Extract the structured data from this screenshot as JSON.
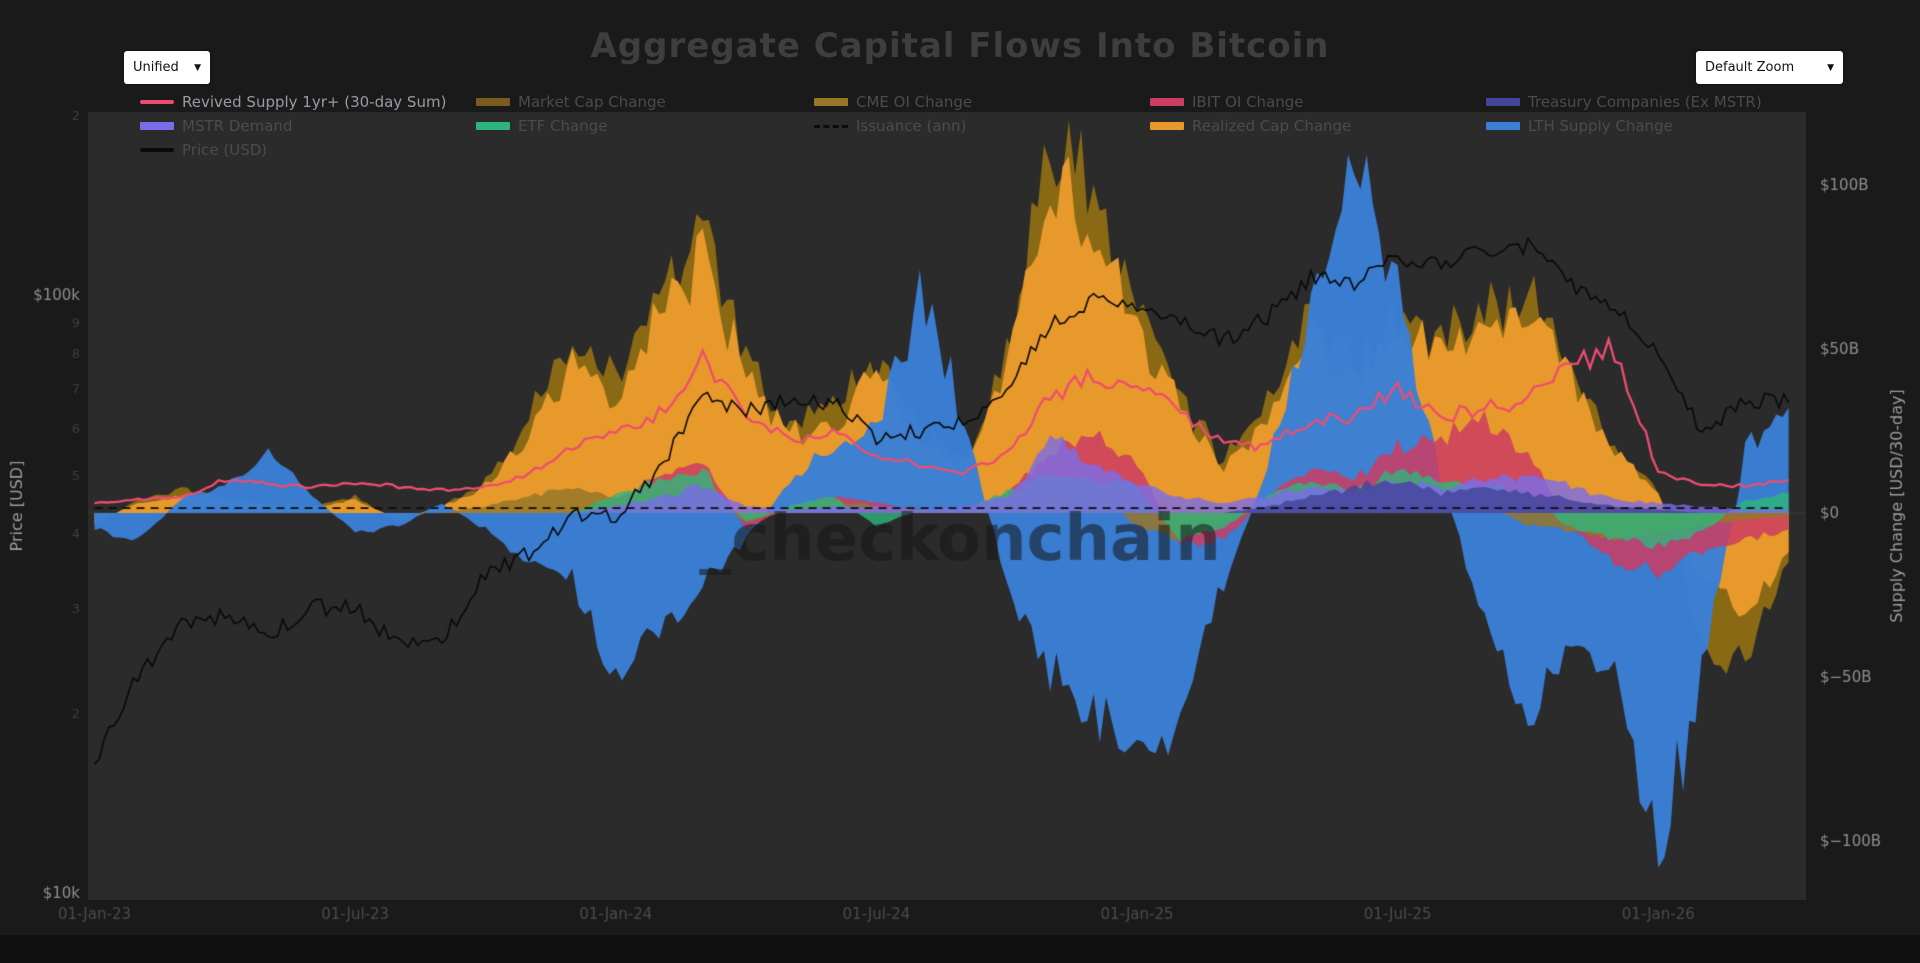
{
  "title": "Aggregate Capital Flows Into Bitcoin",
  "watermark": "_checkonchain",
  "controls": {
    "unified_label": "Unified",
    "zoom_label": "Default Zoom",
    "dropdown_arrow": "▼"
  },
  "colors": {
    "background": "#1a1a1a",
    "plot_background": "#2b2b2b",
    "title_text": "#3e3e3e",
    "tick_major": "#8f8f8f",
    "tick_minor": "#3f3f3f",
    "x_tick": "#4c4c4c",
    "axis_title": "#9c9c9c",
    "zero_line": "#3a3a3a",
    "watermark_text": "rgba(22,22,22,0.55)"
  },
  "legend": {
    "rows": [
      [
        {
          "label": "Revived Supply 1yr+ (30-day Sum)",
          "color": "#ee4d72",
          "swatch": "line",
          "bright": true
        },
        {
          "label": "Market Cap Change",
          "color": "#7a5c1e",
          "swatch": "area",
          "bright": false
        },
        {
          "label": "CME OI Change",
          "color": "#96772a",
          "swatch": "area",
          "bright": false
        },
        {
          "label": "IBIT OI Change",
          "color": "#cc3c63",
          "swatch": "area",
          "bright": false
        },
        {
          "label": "Treasury Companies (Ex MSTR)",
          "color": "#44449a",
          "swatch": "area",
          "bright": false
        }
      ],
      [
        {
          "label": "MSTR Demand",
          "color": "#7b6cea",
          "swatch": "area",
          "bright": false
        },
        {
          "label": "ETF Change",
          "color": "#2eb57c",
          "swatch": "area",
          "bright": false
        },
        {
          "label": "Issuance (ann)",
          "color": "#0c0c0c",
          "swatch": "dash",
          "bright": false
        },
        {
          "label": "Realized Cap Change",
          "color": "#e8992b",
          "swatch": "area",
          "bright": false
        },
        {
          "label": "LTH Supply Change",
          "color": "#3a7fd6",
          "swatch": "area",
          "bright": false
        }
      ],
      [
        {
          "label": "Price (USD)",
          "color": "#0a0a0a",
          "swatch": "line",
          "bright": false
        }
      ]
    ]
  },
  "chart_data": {
    "type": "mixed-area-line",
    "title": "Aggregate Capital Flows Into Bitcoin",
    "x": [
      "2023-01",
      "2023-02",
      "2023-03",
      "2023-04",
      "2023-05",
      "2023-06",
      "2023-07",
      "2023-08",
      "2023-09",
      "2023-10",
      "2023-11",
      "2023-12",
      "2024-01",
      "2024-02",
      "2024-03",
      "2024-04",
      "2024-05",
      "2024-06",
      "2024-07",
      "2024-08",
      "2024-09",
      "2024-10",
      "2024-11",
      "2024-12",
      "2025-01",
      "2025-02",
      "2025-03",
      "2025-04",
      "2025-05",
      "2025-06",
      "2025-07",
      "2025-08",
      "2025-09",
      "2025-10",
      "2025-11",
      "2025-12",
      "2026-01",
      "2026-02",
      "2026-03",
      "2026-04"
    ],
    "x_ticks": [
      {
        "label": "01-Jan-23",
        "month_index": 0
      },
      {
        "label": "01-Jul-23",
        "month_index": 6
      },
      {
        "label": "01-Jan-24",
        "month_index": 12
      },
      {
        "label": "01-Jul-24",
        "month_index": 18
      },
      {
        "label": "01-Jan-25",
        "month_index": 24
      },
      {
        "label": "01-Jul-25",
        "month_index": 30
      },
      {
        "label": "01-Jan-26",
        "month_index": 36
      }
    ],
    "axes": {
      "left": {
        "title": "Price [USD]",
        "scale": "log",
        "range": [
          9700,
          202000
        ],
        "ticks": [
          {
            "label": "2",
            "value": 200000,
            "major": false
          },
          {
            "label": "$100k",
            "value": 100000,
            "major": true
          },
          {
            "label": "9",
            "value": 90000,
            "major": false
          },
          {
            "label": "8",
            "value": 80000,
            "major": false
          },
          {
            "label": "7",
            "value": 70000,
            "major": false
          },
          {
            "label": "6",
            "value": 60000,
            "major": false
          },
          {
            "label": "5",
            "value": 50000,
            "major": false
          },
          {
            "label": "4",
            "value": 40000,
            "major": false
          },
          {
            "label": "3",
            "value": 30000,
            "major": false
          },
          {
            "label": "2",
            "value": 20000,
            "major": false
          },
          {
            "label": "$10k",
            "value": 10000,
            "major": true
          }
        ]
      },
      "right": {
        "title": "Supply Change [USD/30-day]",
        "scale": "linear",
        "unit": "billion USD",
        "range": [
          -118,
          122
        ],
        "ticks": [
          {
            "label": "$100B",
            "value": 100
          },
          {
            "label": "$50B",
            "value": 50
          },
          {
            "label": "$0",
            "value": 0
          },
          {
            "label": "$−50B",
            "value": -50
          },
          {
            "label": "$−100B",
            "value": -100
          }
        ]
      }
    },
    "series": [
      {
        "name": "Market Cap Change",
        "axis": "right",
        "kind": "area",
        "color": "#8a6914",
        "alpha": 1.0,
        "values": [
          -4,
          4,
          7,
          5,
          3,
          2,
          5,
          -3,
          2,
          9,
          28,
          52,
          40,
          68,
          88,
          46,
          26,
          32,
          48,
          24,
          16,
          50,
          115,
          100,
          68,
          34,
          16,
          32,
          64,
          45,
          62,
          55,
          60,
          70,
          45,
          20,
          6,
          -38,
          -48,
          -15
        ]
      },
      {
        "name": "Realized Cap Change",
        "axis": "right",
        "kind": "area",
        "color": "#e8992b",
        "alpha": 1.0,
        "values": [
          -3,
          3,
          5,
          4,
          2,
          2,
          4,
          -2,
          2,
          8,
          24,
          45,
          35,
          60,
          78,
          42,
          24,
          28,
          42,
          20,
          14,
          45,
          102,
          88,
          60,
          30,
          14,
          28,
          58,
          40,
          55,
          50,
          55,
          63,
          40,
          18,
          5,
          -22,
          -31,
          -12
        ]
      },
      {
        "name": "LTH Supply Change",
        "axis": "right",
        "kind": "area",
        "color": "#3a7fd6",
        "alpha": 0.97,
        "values": [
          -5,
          -8,
          4,
          8,
          18,
          5,
          -6,
          -4,
          3,
          -5,
          -14,
          -20,
          -51,
          -35,
          -22,
          -8,
          10,
          20,
          25,
          66,
          30,
          -20,
          -50,
          -60,
          -75,
          -58,
          -22,
          15,
          60,
          109,
          70,
          8,
          -30,
          -68,
          -40,
          -45,
          -103,
          -50,
          20,
          32
        ]
      },
      {
        "name": "IBIT OI Change",
        "axis": "right",
        "kind": "area",
        "color": "#cc3c63",
        "alpha": 0.85,
        "values": [
          0,
          0,
          0,
          0,
          0,
          0,
          0,
          0,
          0,
          0,
          0,
          0,
          5,
          10,
          16,
          -5,
          2,
          5,
          3,
          1,
          1,
          5,
          18,
          24,
          14,
          -10,
          -8,
          5,
          14,
          10,
          20,
          24,
          28,
          20,
          -5,
          -15,
          -18,
          -12,
          -8,
          -5
        ]
      },
      {
        "name": "CME OI Change",
        "axis": "right",
        "kind": "area",
        "color": "#96772a",
        "alpha": 0.85,
        "values": [
          0,
          0,
          0,
          0,
          0,
          0,
          0,
          0,
          0,
          2,
          5,
          8,
          4,
          6,
          7,
          -3,
          1,
          4,
          2,
          1,
          1,
          3,
          10,
          8,
          -4,
          -8,
          -3,
          2,
          5,
          3,
          6,
          4,
          3,
          -4,
          -5,
          -8,
          -6,
          -4,
          -2,
          -1
        ]
      },
      {
        "name": "ETF Change",
        "axis": "right",
        "kind": "area",
        "color": "#2eb57c",
        "alpha": 0.8,
        "values": [
          0,
          0,
          0,
          0,
          0,
          0,
          0,
          0,
          0,
          0,
          0,
          0,
          6,
          10,
          13,
          -3,
          2,
          5,
          -4,
          1,
          1,
          6,
          12,
          10,
          8,
          -8,
          -5,
          6,
          10,
          6,
          13,
          10,
          8,
          6,
          -5,
          -8,
          -10,
          -6,
          4,
          6
        ]
      },
      {
        "name": "MSTR Demand",
        "axis": "right",
        "kind": "area",
        "color": "#7b6cea",
        "alpha": 0.8,
        "values": [
          0,
          0,
          0,
          0,
          0,
          0,
          0,
          0,
          0,
          0,
          0,
          0,
          2,
          5,
          8,
          2,
          1,
          2,
          2,
          1,
          2,
          5,
          22,
          15,
          10,
          5,
          3,
          5,
          8,
          6,
          10,
          8,
          10,
          12,
          8,
          4,
          3,
          2,
          1,
          1
        ]
      },
      {
        "name": "Treasury Companies (Ex MSTR)",
        "axis": "right",
        "kind": "area",
        "color": "#44449a",
        "alpha": 0.8,
        "values": [
          0,
          0,
          0,
          0,
          0,
          0,
          0,
          0,
          0,
          0,
          0,
          0,
          0,
          0,
          0,
          0,
          0,
          0,
          0,
          0,
          0,
          0,
          0,
          0,
          0,
          0,
          0,
          2,
          5,
          8,
          10,
          6,
          8,
          6,
          4,
          2,
          1,
          0,
          0,
          0
        ]
      },
      {
        "name": "Issuance (ann)",
        "axis": "right",
        "kind": "dashed-line",
        "color": "#0c0c0c",
        "alpha": 1.0,
        "values": [
          1.5,
          1.5,
          1.5,
          1.5,
          1.5,
          1.5,
          1.5,
          1.5,
          1.5,
          1.5,
          1.5,
          1.5,
          1.5,
          1.5,
          1.5,
          1.5,
          1.5,
          1.5,
          1.5,
          1.5,
          1.5,
          1.5,
          1.5,
          1.5,
          1.5,
          1.5,
          1.5,
          1.5,
          1.5,
          1.5,
          1.5,
          1.5,
          1.5,
          1.5,
          1.5,
          1.5,
          1.5,
          1.5,
          1.5,
          1.5
        ]
      },
      {
        "name": "Revived Supply 1yr+ (30-day Sum)",
        "axis": "right",
        "kind": "line",
        "color": "#ee4d72",
        "alpha": 1.0,
        "values": [
          3,
          4,
          5,
          10,
          9,
          8,
          9,
          8,
          7,
          8,
          12,
          20,
          25,
          30,
          48,
          30,
          22,
          25,
          18,
          15,
          12,
          18,
          35,
          42,
          40,
          30,
          22,
          20,
          28,
          30,
          38,
          30,
          32,
          35,
          45,
          50,
          12,
          9,
          8,
          10
        ]
      },
      {
        "name": "Price (USD)",
        "axis": "left",
        "kind": "line",
        "color": "#0a0a0a",
        "alpha": 1.0,
        "values": [
          16500,
          23000,
          28000,
          29000,
          27000,
          30000,
          30000,
          26000,
          26500,
          34000,
          37000,
          43000,
          42500,
          51000,
          68000,
          64000,
          67000,
          66000,
          58000,
          59000,
          62000,
          68000,
          90000,
          98000,
          94000,
          90000,
          84000,
          92000,
          107000,
          105000,
          115000,
          114000,
          118000,
          121000,
          104000,
          96000,
          80000,
          59000,
          67000,
          66000
        ]
      }
    ]
  }
}
